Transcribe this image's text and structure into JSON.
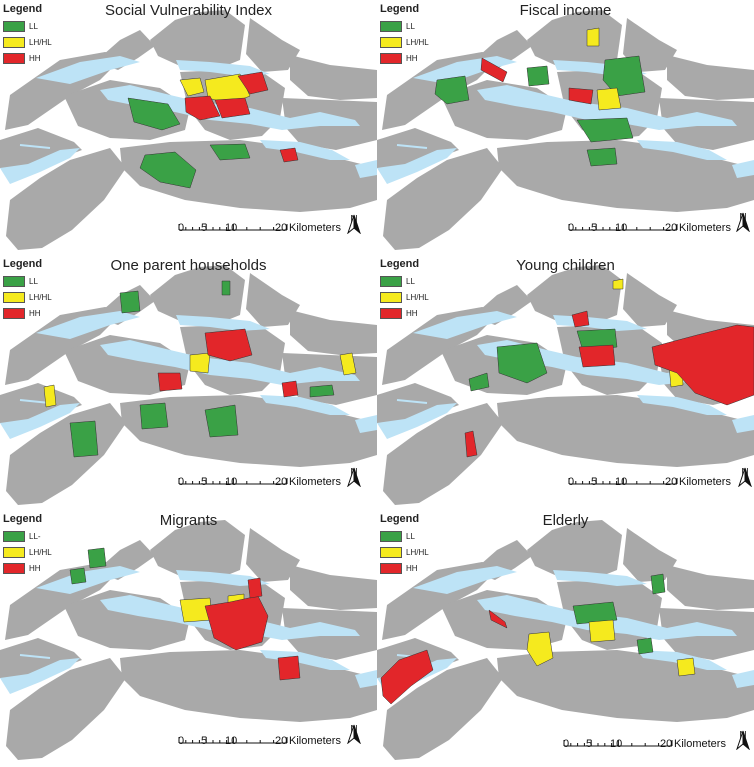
{
  "legend_title": "Legend",
  "legend_colors": {
    "LL": "#3aa146",
    "LH/HL": "#f5ea1e",
    "HH": "#e2262a"
  },
  "land_color": "#a9a9a9",
  "water_color": "#bde3f6",
  "scale": {
    "ticks": [
      "0",
      "5",
      "10",
      "20"
    ],
    "unit": "Kilometers"
  },
  "north_label": "N",
  "panels": [
    {
      "title": "Social Vulnerability Index",
      "legend": [
        "LL",
        "LH/HL",
        "HH"
      ]
    },
    {
      "title": "Fiscal income",
      "legend": [
        "LL",
        "LH/HL",
        "HH"
      ]
    },
    {
      "title": "One parent households",
      "legend": [
        "LL",
        "LH/HL",
        "HH"
      ]
    },
    {
      "title": "Young children",
      "legend": [
        "LL",
        "LH/HL",
        "HH"
      ]
    },
    {
      "title": "Migrants",
      "legend": [
        "LL-",
        "LH/HL",
        "HH"
      ]
    },
    {
      "title": "Elderly",
      "legend": [
        "LL",
        "LH/HL",
        "HH"
      ]
    }
  ]
}
